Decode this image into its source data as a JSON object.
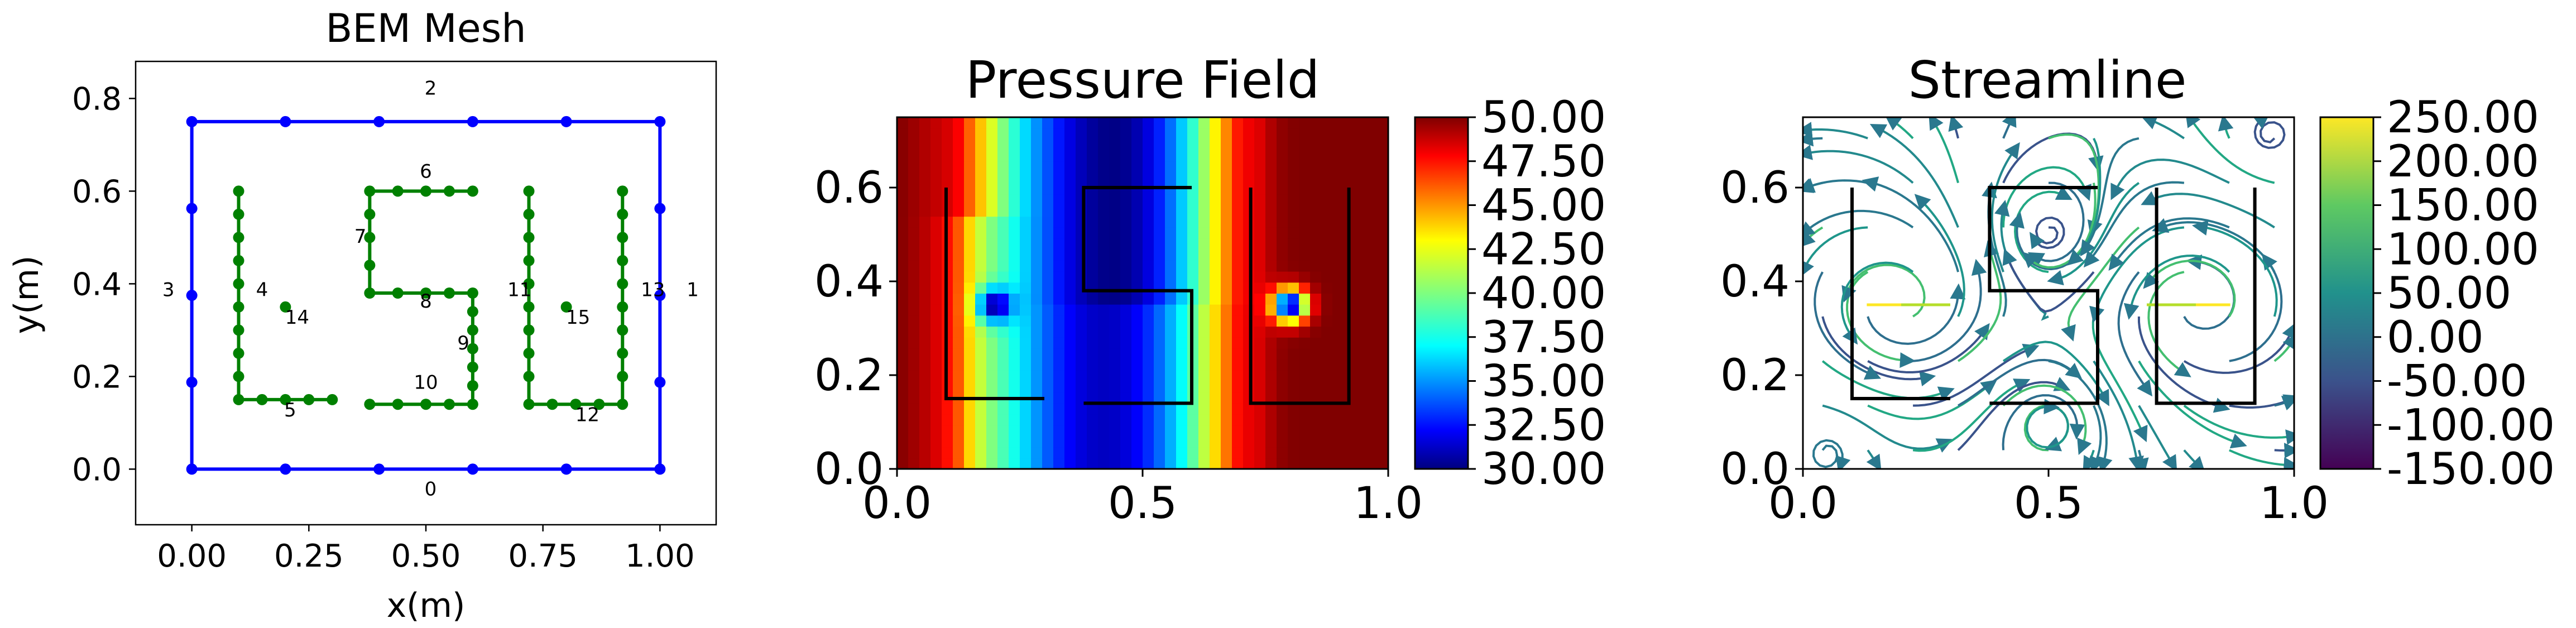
{
  "figure": {
    "panels": [
      "BEM Mesh",
      "Pressure Field",
      "Streamline"
    ]
  },
  "chart_data": [
    {
      "type": "scatter",
      "title": "BEM Mesh",
      "xlabel": "x(m)",
      "ylabel": "y(m)",
      "xlim": [
        -0.12,
        1.12
      ],
      "ylim": [
        -0.12,
        0.88
      ],
      "xticks": [
        "0.00",
        "0.25",
        "0.50",
        "0.75",
        "1.00"
      ],
      "xtick_values": [
        0,
        0.25,
        0.5,
        0.75,
        1.0
      ],
      "yticks": [
        "0.0",
        "0.2",
        "0.4",
        "0.6",
        "0.8"
      ],
      "ytick_values": [
        0,
        0.2,
        0.4,
        0.6,
        0.8
      ],
      "grid": false,
      "colors": {
        "boundary": "#0000ff",
        "obstacle": "#008000"
      },
      "series": [
        {
          "kind": "boundary",
          "polylines": [
            [
              [
                0,
                0
              ],
              [
                1,
                0
              ],
              [
                1,
                0.75
              ],
              [
                0,
                0.75
              ],
              [
                0,
                0
              ]
            ]
          ],
          "nodes": [
            [
              0,
              0
            ],
            [
              0.2,
              0
            ],
            [
              0.4,
              0
            ],
            [
              0.6,
              0
            ],
            [
              0.8,
              0
            ],
            [
              1,
              0
            ],
            [
              1,
              0.1875
            ],
            [
              1,
              0.375
            ],
            [
              1,
              0.5625
            ],
            [
              1,
              0.75
            ],
            [
              0.8,
              0.75
            ],
            [
              0.6,
              0.75
            ],
            [
              0.4,
              0.75
            ],
            [
              0.2,
              0.75
            ],
            [
              0,
              0.75
            ],
            [
              0,
              0.5625
            ],
            [
              0,
              0.375
            ],
            [
              0,
              0.1875
            ]
          ]
        },
        {
          "kind": "obstacle",
          "polylines": [
            [
              [
                0.1,
                0.6
              ],
              [
                0.1,
                0.15
              ],
              [
                0.3,
                0.15
              ]
            ],
            [
              [
                0.6,
                0.6
              ],
              [
                0.38,
                0.6
              ],
              [
                0.38,
                0.38
              ],
              [
                0.6,
                0.38
              ],
              [
                0.6,
                0.14
              ],
              [
                0.38,
                0.14
              ]
            ],
            [
              [
                0.72,
                0.6
              ],
              [
                0.72,
                0.14
              ],
              [
                0.92,
                0.14
              ],
              [
                0.92,
                0.6
              ]
            ]
          ],
          "nodes": [
            [
              0.1,
              0.6
            ],
            [
              0.1,
              0.55
            ],
            [
              0.1,
              0.5
            ],
            [
              0.1,
              0.45
            ],
            [
              0.1,
              0.4
            ],
            [
              0.1,
              0.35
            ],
            [
              0.1,
              0.3
            ],
            [
              0.1,
              0.25
            ],
            [
              0.1,
              0.2
            ],
            [
              0.1,
              0.15
            ],
            [
              0.15,
              0.15
            ],
            [
              0.2,
              0.15
            ],
            [
              0.25,
              0.15
            ],
            [
              0.3,
              0.15
            ],
            [
              0.6,
              0.6
            ],
            [
              0.55,
              0.6
            ],
            [
              0.5,
              0.6
            ],
            [
              0.44,
              0.6
            ],
            [
              0.38,
              0.6
            ],
            [
              0.38,
              0.55
            ],
            [
              0.38,
              0.5
            ],
            [
              0.38,
              0.44
            ],
            [
              0.38,
              0.38
            ],
            [
              0.44,
              0.38
            ],
            [
              0.5,
              0.38
            ],
            [
              0.55,
              0.38
            ],
            [
              0.6,
              0.38
            ],
            [
              0.6,
              0.34
            ],
            [
              0.6,
              0.3
            ],
            [
              0.6,
              0.26
            ],
            [
              0.6,
              0.22
            ],
            [
              0.6,
              0.18
            ],
            [
              0.6,
              0.14
            ],
            [
              0.55,
              0.14
            ],
            [
              0.5,
              0.14
            ],
            [
              0.44,
              0.14
            ],
            [
              0.38,
              0.14
            ],
            [
              0.72,
              0.6
            ],
            [
              0.72,
              0.55
            ],
            [
              0.72,
              0.5
            ],
            [
              0.72,
              0.45
            ],
            [
              0.72,
              0.4
            ],
            [
              0.72,
              0.35
            ],
            [
              0.72,
              0.3
            ],
            [
              0.72,
              0.25
            ],
            [
              0.72,
              0.2
            ],
            [
              0.72,
              0.14
            ],
            [
              0.77,
              0.14
            ],
            [
              0.82,
              0.14
            ],
            [
              0.87,
              0.14
            ],
            [
              0.92,
              0.14
            ],
            [
              0.92,
              0.2
            ],
            [
              0.92,
              0.25
            ],
            [
              0.92,
              0.3
            ],
            [
              0.92,
              0.35
            ],
            [
              0.92,
              0.4
            ],
            [
              0.92,
              0.45
            ],
            [
              0.92,
              0.5
            ],
            [
              0.92,
              0.55
            ],
            [
              0.92,
              0.6
            ],
            [
              0.2,
              0.35
            ],
            [
              0.8,
              0.35
            ]
          ]
        }
      ],
      "annotations": [
        {
          "text": "0",
          "x": 0.51,
          "y": -0.045
        },
        {
          "text": "1",
          "x": 1.07,
          "y": 0.385
        },
        {
          "text": "2",
          "x": 0.51,
          "y": 0.82
        },
        {
          "text": "3",
          "x": -0.05,
          "y": 0.385
        },
        {
          "text": "4",
          "x": 0.15,
          "y": 0.385
        },
        {
          "text": "5",
          "x": 0.21,
          "y": 0.125
        },
        {
          "text": "6",
          "x": 0.5,
          "y": 0.64
        },
        {
          "text": "7",
          "x": 0.36,
          "y": 0.5
        },
        {
          "text": "8",
          "x": 0.5,
          "y": 0.36
        },
        {
          "text": "9",
          "x": 0.58,
          "y": 0.27
        },
        {
          "text": "10",
          "x": 0.5,
          "y": 0.185
        },
        {
          "text": "11",
          "x": 0.7,
          "y": 0.385
        },
        {
          "text": "12",
          "x": 0.845,
          "y": 0.115
        },
        {
          "text": "13",
          "x": 0.985,
          "y": 0.385
        },
        {
          "text": "14",
          "x": 0.225,
          "y": 0.325
        },
        {
          "text": "15",
          "x": 0.825,
          "y": 0.325
        }
      ]
    },
    {
      "type": "heatmap",
      "title": "Pressure Field",
      "xlabel": "",
      "ylabel": "",
      "xlim": [
        0,
        1
      ],
      "ylim": [
        0,
        0.75
      ],
      "xticks": [
        "0.0",
        "0.5",
        "1.0"
      ],
      "xtick_values": [
        0,
        0.5,
        1.0
      ],
      "yticks": [
        "0.0",
        "0.2",
        "0.4",
        "0.6"
      ],
      "ytick_values": [
        0,
        0.2,
        0.4,
        0.6
      ],
      "colormap": "jet",
      "colorbar": {
        "min": 30,
        "max": 50,
        "ticks": [
          "50.00",
          "47.50",
          "45.00",
          "42.50",
          "40.00",
          "37.50",
          "35.00",
          "32.50",
          "30.00"
        ],
        "tick_values": [
          50,
          47.5,
          45,
          42.5,
          40,
          37.5,
          35,
          32.5,
          30
        ]
      },
      "sources": [
        {
          "x": 0.2,
          "y": 0.35,
          "pressure": 30
        },
        {
          "x": 0.8,
          "y": 0.35,
          "pressure": 30
        }
      ],
      "field_shape": {
        "left_edge_pressure": 50,
        "center_min_pressure": 32,
        "right_region_pressure": 50
      }
    },
    {
      "type": "streamline",
      "title": "Streamline",
      "xlabel": "",
      "ylabel": "",
      "xlim": [
        0,
        1
      ],
      "ylim": [
        0,
        0.75
      ],
      "xticks": [
        "0.0",
        "0.5",
        "1.0"
      ],
      "xtick_values": [
        0,
        0.5,
        1.0
      ],
      "yticks": [
        "0.0",
        "0.2",
        "0.4",
        "0.6"
      ],
      "ytick_values": [
        0,
        0.2,
        0.4,
        0.6
      ],
      "colormap": "viridis",
      "colorbar": {
        "min": -150,
        "max": 250,
        "ticks": [
          "250.00",
          "200.00",
          "150.00",
          "100.00",
          "50.00",
          "0.00",
          "-50.00",
          "-100.00",
          "-150.00"
        ],
        "tick_values": [
          250,
          200,
          150,
          100,
          50,
          0,
          -50,
          -100,
          -150
        ]
      }
    }
  ]
}
